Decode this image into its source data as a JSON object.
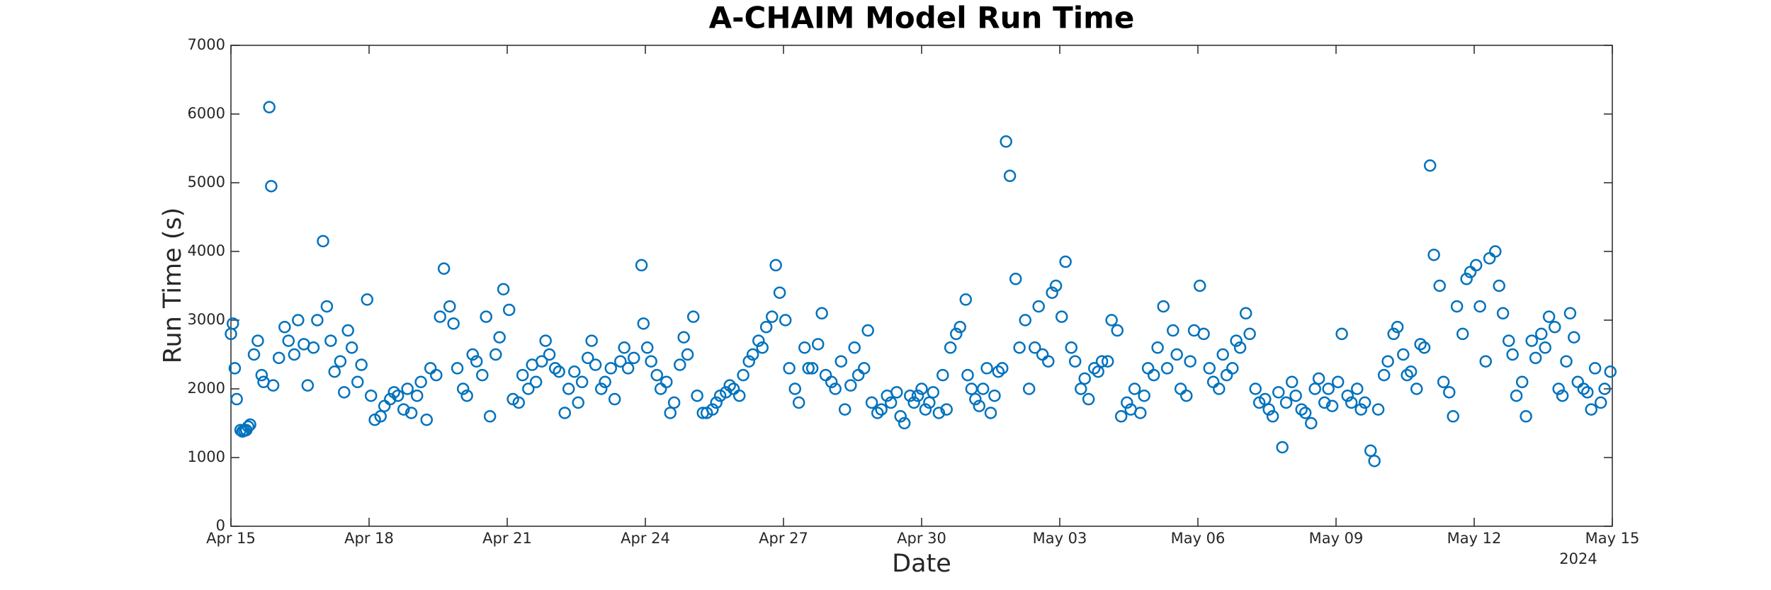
{
  "chart_data": {
    "type": "scatter",
    "title": "A-CHAIM Model Run Time",
    "x_label": "Date",
    "y_label": "Run Time (s)",
    "x_secondary_label": "2024",
    "color": "#0072BD",
    "grid": false,
    "xlim": [
      "2024-04-15T00:00",
      "2024-05-15T00:00"
    ],
    "xticks": [
      {
        "value": "2024-04-15T00:00",
        "label": "Apr 15"
      },
      {
        "value": "2024-04-18T00:00",
        "label": "Apr 18"
      },
      {
        "value": "2024-04-21T00:00",
        "label": "Apr 21"
      },
      {
        "value": "2024-04-24T00:00",
        "label": "Apr 24"
      },
      {
        "value": "2024-04-27T00:00",
        "label": "Apr 27"
      },
      {
        "value": "2024-04-30T00:00",
        "label": "Apr 30"
      },
      {
        "value": "2024-05-03T00:00",
        "label": "May 03"
      },
      {
        "value": "2024-05-06T00:00",
        "label": "May 06"
      },
      {
        "value": "2024-05-09T00:00",
        "label": "May 09"
      },
      {
        "value": "2024-05-12T00:00",
        "label": "May 12"
      },
      {
        "value": "2024-05-15T00:00",
        "label": "May 15"
      }
    ],
    "ylim": [
      0,
      7000
    ],
    "yticks": [
      0,
      1000,
      2000,
      3000,
      4000,
      5000,
      6000,
      7000
    ],
    "x": [
      "2024-04-15T00:00",
      "2024-04-15T01:00",
      "2024-04-15T02:00",
      "2024-04-15T03:00",
      "2024-04-15T05:00",
      "2024-04-15T06:00",
      "2024-04-15T07:00",
      "2024-04-15T08:00",
      "2024-04-15T09:00",
      "2024-04-15T10:00",
      "2024-04-15T12:00",
      "2024-04-15T14:00",
      "2024-04-15T16:00",
      "2024-04-15T17:00",
      "2024-04-15T20:00",
      "2024-04-15T21:00",
      "2024-04-15T22:00",
      "2024-04-16T01:00",
      "2024-04-16T04:00",
      "2024-04-16T06:00",
      "2024-04-16T09:00",
      "2024-04-16T11:00",
      "2024-04-16T14:00",
      "2024-04-16T16:00",
      "2024-04-16T19:00",
      "2024-04-16T21:00",
      "2024-04-17T00:00",
      "2024-04-17T02:00",
      "2024-04-17T04:00",
      "2024-04-17T06:00",
      "2024-04-17T09:00",
      "2024-04-17T11:00",
      "2024-04-17T13:00",
      "2024-04-17T15:00",
      "2024-04-17T18:00",
      "2024-04-17T20:00",
      "2024-04-17T23:00",
      "2024-04-18T01:00",
      "2024-04-18T03:00",
      "2024-04-18T06:00",
      "2024-04-18T08:00",
      "2024-04-18T11:00",
      "2024-04-18T13:00",
      "2024-04-18T15:00",
      "2024-04-18T18:00",
      "2024-04-18T20:00",
      "2024-04-18T22:00",
      "2024-04-19T01:00",
      "2024-04-19T03:00",
      "2024-04-19T06:00",
      "2024-04-19T08:00",
      "2024-04-19T11:00",
      "2024-04-19T13:00",
      "2024-04-19T15:00",
      "2024-04-19T18:00",
      "2024-04-19T20:00",
      "2024-04-19T22:00",
      "2024-04-20T01:00",
      "2024-04-20T03:00",
      "2024-04-20T06:00",
      "2024-04-20T08:00",
      "2024-04-20T11:00",
      "2024-04-20T13:00",
      "2024-04-20T15:00",
      "2024-04-20T18:00",
      "2024-04-20T20:00",
      "2024-04-20T22:00",
      "2024-04-21T01:00",
      "2024-04-21T03:00",
      "2024-04-21T06:00",
      "2024-04-21T08:00",
      "2024-04-21T11:00",
      "2024-04-21T13:00",
      "2024-04-21T15:00",
      "2024-04-21T18:00",
      "2024-04-21T20:00",
      "2024-04-21T22:00",
      "2024-04-22T01:00",
      "2024-04-22T03:00",
      "2024-04-22T06:00",
      "2024-04-22T08:00",
      "2024-04-22T11:00",
      "2024-04-22T13:00",
      "2024-04-22T15:00",
      "2024-04-22T18:00",
      "2024-04-22T20:00",
      "2024-04-22T22:00",
      "2024-04-23T01:00",
      "2024-04-23T03:00",
      "2024-04-23T06:00",
      "2024-04-23T08:00",
      "2024-04-23T11:00",
      "2024-04-23T13:00",
      "2024-04-23T15:00",
      "2024-04-23T18:00",
      "2024-04-23T22:00",
      "2024-04-23T23:00",
      "2024-04-24T01:00",
      "2024-04-24T03:00",
      "2024-04-24T06:00",
      "2024-04-24T08:00",
      "2024-04-24T11:00",
      "2024-04-24T13:00",
      "2024-04-24T15:00",
      "2024-04-24T18:00",
      "2024-04-24T20:00",
      "2024-04-24T22:00",
      "2024-04-25T01:00",
      "2024-04-25T03:00",
      "2024-04-25T06:00",
      "2024-04-25T08:00",
      "2024-04-25T11:00",
      "2024-04-25T13:00",
      "2024-04-25T15:00",
      "2024-04-25T18:00",
      "2024-04-25T20:00",
      "2024-04-25T22:00",
      "2024-04-26T01:00",
      "2024-04-26T03:00",
      "2024-04-26T06:00",
      "2024-04-26T08:00",
      "2024-04-26T11:00",
      "2024-04-26T13:00",
      "2024-04-26T15:00",
      "2024-04-26T18:00",
      "2024-04-26T20:00",
      "2024-04-26T22:00",
      "2024-04-27T01:00",
      "2024-04-27T03:00",
      "2024-04-27T06:00",
      "2024-04-27T08:00",
      "2024-04-27T11:00",
      "2024-04-27T13:00",
      "2024-04-27T15:00",
      "2024-04-27T18:00",
      "2024-04-27T20:00",
      "2024-04-27T22:00",
      "2024-04-28T01:00",
      "2024-04-28T03:00",
      "2024-04-28T06:00",
      "2024-04-28T08:00",
      "2024-04-28T11:00",
      "2024-04-28T13:00",
      "2024-04-28T15:00",
      "2024-04-28T18:00",
      "2024-04-28T20:00",
      "2024-04-28T22:00",
      "2024-04-29T01:00",
      "2024-04-29T03:00",
      "2024-04-29T06:00",
      "2024-04-29T08:00",
      "2024-04-29T11:00",
      "2024-04-29T13:00",
      "2024-04-29T15:00",
      "2024-04-29T18:00",
      "2024-04-29T20:00",
      "2024-04-29T22:00",
      "2024-04-30T00:00",
      "2024-04-30T02:00",
      "2024-04-30T04:00",
      "2024-04-30T06:00",
      "2024-04-30T09:00",
      "2024-04-30T11:00",
      "2024-04-30T13:00",
      "2024-04-30T15:00",
      "2024-04-30T18:00",
      "2024-04-30T20:00",
      "2024-04-30T23:00",
      "2024-05-01T00:00",
      "2024-05-01T02:00",
      "2024-05-01T04:00",
      "2024-05-01T06:00",
      "2024-05-01T08:00",
      "2024-05-01T10:00",
      "2024-05-01T12:00",
      "2024-05-01T14:00",
      "2024-05-01T16:00",
      "2024-05-01T18:00",
      "2024-05-01T20:00",
      "2024-05-01T22:00",
      "2024-05-02T01:00",
      "2024-05-02T03:00",
      "2024-05-02T06:00",
      "2024-05-02T08:00",
      "2024-05-02T11:00",
      "2024-05-02T13:00",
      "2024-05-02T15:00",
      "2024-05-02T18:00",
      "2024-05-02T20:00",
      "2024-05-02T22:00",
      "2024-05-03T01:00",
      "2024-05-03T03:00",
      "2024-05-03T06:00",
      "2024-05-03T08:00",
      "2024-05-03T11:00",
      "2024-05-03T13:00",
      "2024-05-03T15:00",
      "2024-05-03T18:00",
      "2024-05-03T20:00",
      "2024-05-03T22:00",
      "2024-05-04T01:00",
      "2024-05-04T03:00",
      "2024-05-04T06:00",
      "2024-05-04T08:00",
      "2024-05-04T11:00",
      "2024-05-04T13:00",
      "2024-05-04T15:00",
      "2024-05-04T18:00",
      "2024-05-04T20:00",
      "2024-05-04T22:00",
      "2024-05-05T01:00",
      "2024-05-05T03:00",
      "2024-05-05T06:00",
      "2024-05-05T08:00",
      "2024-05-05T11:00",
      "2024-05-05T13:00",
      "2024-05-05T15:00",
      "2024-05-05T18:00",
      "2024-05-05T20:00",
      "2024-05-05T22:00",
      "2024-05-06T01:00",
      "2024-05-06T03:00",
      "2024-05-06T06:00",
      "2024-05-06T08:00",
      "2024-05-06T11:00",
      "2024-05-06T13:00",
      "2024-05-06T15:00",
      "2024-05-06T18:00",
      "2024-05-06T20:00",
      "2024-05-06T22:00",
      "2024-05-07T01:00",
      "2024-05-07T03:00",
      "2024-05-07T06:00",
      "2024-05-07T08:00",
      "2024-05-07T11:00",
      "2024-05-07T13:00",
      "2024-05-07T15:00",
      "2024-05-07T18:00",
      "2024-05-07T20:00",
      "2024-05-07T22:00",
      "2024-05-08T01:00",
      "2024-05-08T03:00",
      "2024-05-08T06:00",
      "2024-05-08T08:00",
      "2024-05-08T11:00",
      "2024-05-08T13:00",
      "2024-05-08T15:00",
      "2024-05-08T18:00",
      "2024-05-08T20:00",
      "2024-05-08T22:00",
      "2024-05-09T01:00",
      "2024-05-09T03:00",
      "2024-05-09T06:00",
      "2024-05-09T08:00",
      "2024-05-09T11:00",
      "2024-05-09T13:00",
      "2024-05-09T15:00",
      "2024-05-09T18:00",
      "2024-05-09T20:00",
      "2024-05-09T22:00",
      "2024-05-10T01:00",
      "2024-05-10T03:00",
      "2024-05-10T06:00",
      "2024-05-10T08:00",
      "2024-05-10T11:00",
      "2024-05-10T13:00",
      "2024-05-10T15:00",
      "2024-05-10T18:00",
      "2024-05-10T20:00",
      "2024-05-10T22:00",
      "2024-05-11T01:00",
      "2024-05-11T03:00",
      "2024-05-11T06:00",
      "2024-05-11T08:00",
      "2024-05-11T11:00",
      "2024-05-11T13:00",
      "2024-05-11T15:00",
      "2024-05-11T18:00",
      "2024-05-11T20:00",
      "2024-05-11T22:00",
      "2024-05-12T01:00",
      "2024-05-12T03:00",
      "2024-05-12T06:00",
      "2024-05-12T08:00",
      "2024-05-12T11:00",
      "2024-05-12T13:00",
      "2024-05-12T15:00",
      "2024-05-12T18:00",
      "2024-05-12T20:00",
      "2024-05-12T22:00",
      "2024-05-13T01:00",
      "2024-05-13T03:00",
      "2024-05-13T06:00",
      "2024-05-13T08:00",
      "2024-05-13T11:00",
      "2024-05-13T13:00",
      "2024-05-13T15:00",
      "2024-05-13T18:00",
      "2024-05-13T20:00",
      "2024-05-13T22:00",
      "2024-05-14T00:00",
      "2024-05-14T02:00",
      "2024-05-14T04:00",
      "2024-05-14T06:00",
      "2024-05-14T09:00",
      "2024-05-14T11:00",
      "2024-05-14T13:00",
      "2024-05-14T15:00",
      "2024-05-14T18:00",
      "2024-05-14T20:00",
      "2024-05-14T23:00"
    ],
    "values": [
      2800,
      2950,
      2300,
      1850,
      1400,
      1380,
      1390,
      1400,
      1450,
      1480,
      2500,
      2700,
      2200,
      2100,
      6100,
      4950,
      2050,
      2450,
      2900,
      2700,
      2500,
      3000,
      2650,
      2050,
      2600,
      3000,
      4150,
      3200,
      2700,
      2250,
      2400,
      1950,
      2850,
      2600,
      2100,
      2350,
      3300,
      1900,
      1550,
      1600,
      1750,
      1850,
      1950,
      1900,
      1700,
      2000,
      1650,
      1900,
      2100,
      1550,
      2300,
      2200,
      3050,
      3750,
      3200,
      2950,
      2300,
      2000,
      1900,
      2500,
      2400,
      2200,
      3050,
      1600,
      2500,
      2750,
      3450,
      3150,
      1850,
      1800,
      2200,
      2000,
      2350,
      2100,
      2400,
      2700,
      2500,
      2300,
      2250,
      1650,
      2000,
      2250,
      1800,
      2100,
      2450,
      2700,
      2350,
      2000,
      2100,
      2300,
      1850,
      2400,
      2600,
      2300,
      2450,
      3800,
      2950,
      2600,
      2400,
      2200,
      2000,
      2100,
      1650,
      1800,
      2350,
      2750,
      2500,
      3050,
      1900,
      1650,
      1650,
      1700,
      1800,
      1900,
      1950,
      2050,
      2000,
      1900,
      2200,
      2400,
      2500,
      2700,
      2600,
      2900,
      3050,
      3800,
      3400,
      3000,
      2300,
      2000,
      1800,
      2600,
      2300,
      2300,
      2650,
      3100,
      2200,
      2100,
      2000,
      2400,
      1700,
      2050,
      2600,
      2200,
      2300,
      2850,
      1800,
      1650,
      1700,
      1900,
      1800,
      1950,
      1600,
      1500,
      1900,
      1800,
      1900,
      2000,
      1700,
      1800,
      1950,
      1650,
      2200,
      1700,
      2600,
      2800,
      2900,
      3300,
      2200,
      2000,
      1850,
      1750,
      2000,
      2300,
      1650,
      1900,
      2250,
      2300,
      5600,
      5100,
      3600,
      2600,
      3000,
      2000,
      2600,
      3200,
      2500,
      2400,
      3400,
      3500,
      3050,
      3850,
      2600,
      2400,
      2000,
      2150,
      1850,
      2300,
      2250,
      2400,
      2400,
      3000,
      2850,
      1600,
      1800,
      1700,
      2000,
      1650,
      1900,
      2300,
      2200,
      2600,
      3200,
      2300,
      2850,
      2500,
      2000,
      1900,
      2400,
      2850,
      3500,
      2800,
      2300,
      2100,
      2000,
      2500,
      2200,
      2300,
      2700,
      2600,
      3100,
      2800,
      2000,
      1800,
      1850,
      1700,
      1600,
      1950,
      1150,
      1800,
      2100,
      1900,
      1700,
      1650,
      1500,
      2000,
      2150,
      1800,
      2000,
      1750,
      2100,
      2800,
      1900,
      1800,
      2000,
      1700,
      1800,
      1100,
      950,
      1700,
      2200,
      2400,
      2800,
      2900,
      2500,
      2200,
      2250,
      2000,
      2650,
      2600,
      5250,
      3950,
      3500,
      2100,
      1950,
      1600,
      3200,
      2800,
      3600,
      3700,
      3800,
      3200,
      2400,
      3900,
      4000,
      3500,
      3100,
      2700,
      2500,
      1900,
      2100,
      1600,
      2700,
      2450,
      2800,
      2600,
      3050,
      2900,
      2000,
      1900,
      2400,
      3100,
      2750,
      2100,
      2000,
      1950,
      1700,
      2300,
      1800,
      2000,
      2250
    ]
  }
}
